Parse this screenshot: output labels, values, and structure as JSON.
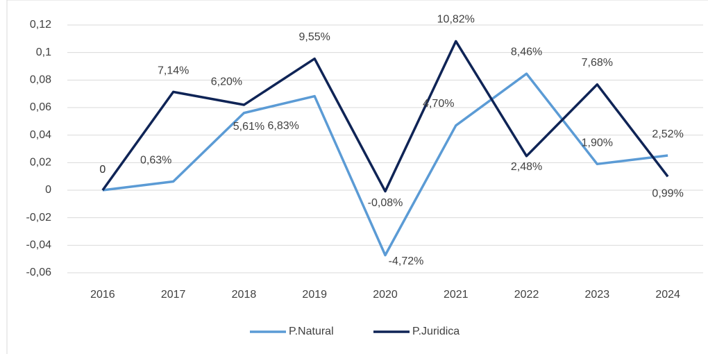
{
  "chart_data": {
    "type": "line",
    "categories": [
      "2016",
      "2017",
      "2018",
      "2019",
      "2020",
      "2021",
      "2022",
      "2023",
      "2024"
    ],
    "series": [
      {
        "name": "P.Natural",
        "color": "#5b9bd5",
        "values": [
          0,
          0.0063,
          0.0561,
          0.0683,
          -0.0472,
          0.047,
          0.0846,
          0.019,
          0.0252
        ],
        "value_labels": [
          "0",
          "0,63%",
          "5,61%",
          "6,83%",
          "-4,72%",
          "4,70%",
          "8,46%",
          "1,90%",
          "2,52%"
        ]
      },
      {
        "name": "P.Juridica",
        "color": "#0f2456",
        "values": [
          0,
          0.0714,
          0.062,
          0.0955,
          -0.0008,
          0.1082,
          0.0248,
          0.0768,
          0.0099
        ],
        "value_labels": [
          "0",
          "7,14%",
          "6,20%",
          "9,55%",
          "-0,08%",
          "10,82%",
          "2,48%",
          "7,68%",
          "0,99%"
        ]
      }
    ],
    "ylim": [
      -0.06,
      0.12
    ],
    "yticks": [
      {
        "value": -0.06,
        "label": "-0,06"
      },
      {
        "value": -0.04,
        "label": "-0,04"
      },
      {
        "value": -0.02,
        "label": "-0,02"
      },
      0,
      {
        "value": 0.02,
        "label": "0,02"
      },
      {
        "value": 0.04,
        "label": "0,04"
      },
      {
        "value": 0.06,
        "label": "0,06"
      },
      {
        "value": 0.08,
        "label": "0,08"
      },
      {
        "value": 0.1,
        "label": "0,1"
      },
      {
        "value": 0.12,
        "label": "0,12"
      }
    ],
    "grid": true,
    "legend": "bottom"
  }
}
